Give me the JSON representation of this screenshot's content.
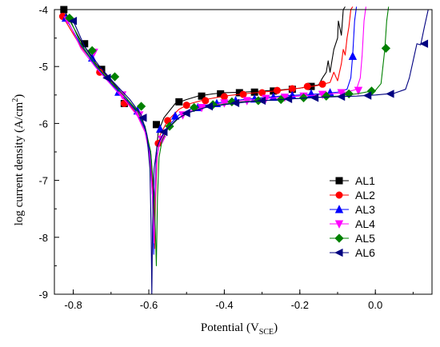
{
  "chart_data": {
    "type": "line",
    "title": "",
    "xlabel": "Potential (V",
    "xlabel_sub": "SCE",
    "xlabel_end": ")",
    "ylabel": "log current density (A/cm",
    "ylabel_sup": "2",
    "ylabel_end": ")",
    "xlim": [
      -0.85,
      0.15
    ],
    "ylim": [
      -9,
      -4
    ],
    "x_ticks": [
      -0.8,
      -0.6,
      -0.4,
      -0.2,
      0.0
    ],
    "x_tick_labels": [
      "-0.8",
      "-0.6",
      "-0.4",
      "-0.2",
      "0.0"
    ],
    "y_ticks": [
      -9,
      -8,
      -7,
      -6,
      -5,
      -4
    ],
    "y_tick_labels": [
      "-9",
      "-8",
      "-7",
      "-6",
      "-5",
      "-4"
    ],
    "grid": false,
    "legend_position": "bottom-right",
    "series": [
      {
        "name": "AL1",
        "color": "#000000",
        "marker": "square",
        "x": [
          -0.825,
          -0.78,
          -0.74,
          -0.7,
          -0.66,
          -0.63,
          -0.61,
          -0.595,
          -0.588,
          -0.585,
          -0.583,
          -0.58,
          -0.575,
          -0.56,
          -0.53,
          -0.5,
          -0.47,
          -0.43,
          -0.4,
          -0.35,
          -0.3,
          -0.25,
          -0.2,
          -0.15,
          -0.14,
          -0.13,
          -0.125,
          -0.12,
          -0.11,
          -0.1,
          -0.098,
          -0.09,
          -0.085,
          -0.08
        ],
        "y": [
          -4.0,
          -4.55,
          -4.95,
          -5.25,
          -5.55,
          -5.8,
          -6.1,
          -6.5,
          -7.2,
          -8.0,
          -7.2,
          -6.5,
          -6.15,
          -5.9,
          -5.65,
          -5.58,
          -5.52,
          -5.48,
          -5.46,
          -5.45,
          -5.43,
          -5.41,
          -5.38,
          -5.32,
          -5.2,
          -5.1,
          -4.9,
          -5.1,
          -4.7,
          -4.5,
          -4.2,
          -4.45,
          -4.0,
          -3.95
        ],
        "markers_x": [
          -0.825,
          -0.77,
          -0.725,
          -0.665,
          -0.58,
          -0.52,
          -0.46,
          -0.41,
          -0.36,
          -0.32,
          -0.27,
          -0.22,
          -0.17
        ],
        "markers_y": [
          -4.0,
          -4.6,
          -5.05,
          -5.65,
          -6.02,
          -5.62,
          -5.52,
          -5.48,
          -5.46,
          -5.45,
          -5.43,
          -5.4,
          -5.35
        ]
      },
      {
        "name": "AL2",
        "color": "#ff0000",
        "marker": "circle",
        "x": [
          -0.828,
          -0.78,
          -0.74,
          -0.7,
          -0.66,
          -0.63,
          -0.61,
          -0.595,
          -0.588,
          -0.585,
          -0.582,
          -0.578,
          -0.57,
          -0.55,
          -0.52,
          -0.49,
          -0.45,
          -0.4,
          -0.35,
          -0.3,
          -0.25,
          -0.2,
          -0.15,
          -0.12,
          -0.11,
          -0.1,
          -0.09,
          -0.085,
          -0.08,
          -0.075,
          -0.07,
          -0.065,
          -0.06
        ],
        "y": [
          -4.12,
          -4.65,
          -4.98,
          -5.28,
          -5.6,
          -5.85,
          -6.15,
          -6.6,
          -7.3,
          -8.2,
          -7.3,
          -6.6,
          -6.2,
          -5.95,
          -5.75,
          -5.65,
          -5.58,
          -5.52,
          -5.48,
          -5.45,
          -5.42,
          -5.38,
          -5.33,
          -5.28,
          -5.1,
          -5.25,
          -4.95,
          -4.7,
          -4.8,
          -4.5,
          -4.3,
          -4.0,
          -3.95
        ],
        "markers_x": [
          -0.828,
          -0.73,
          -0.665,
          -0.575,
          -0.55,
          -0.5,
          -0.45,
          -0.4,
          -0.35,
          -0.3,
          -0.26,
          -0.22,
          -0.18,
          -0.14
        ],
        "markers_y": [
          -4.12,
          -5.1,
          -5.65,
          -6.35,
          -5.95,
          -5.68,
          -5.6,
          -5.53,
          -5.49,
          -5.46,
          -5.42,
          -5.39,
          -5.35,
          -5.31
        ]
      },
      {
        "name": "AL3",
        "color": "#0000ff",
        "marker": "triangle-up",
        "x": [
          -0.82,
          -0.78,
          -0.74,
          -0.7,
          -0.66,
          -0.63,
          -0.61,
          -0.597,
          -0.59,
          -0.587,
          -0.584,
          -0.58,
          -0.57,
          -0.55,
          -0.52,
          -0.49,
          -0.45,
          -0.4,
          -0.35,
          -0.3,
          -0.25,
          -0.2,
          -0.15,
          -0.1,
          -0.075,
          -0.065,
          -0.06,
          -0.055,
          -0.05
        ],
        "y": [
          -4.15,
          -4.62,
          -5.0,
          -5.3,
          -5.58,
          -5.82,
          -6.1,
          -6.5,
          -7.3,
          -8.3,
          -7.3,
          -6.6,
          -6.3,
          -6.05,
          -5.85,
          -5.75,
          -5.68,
          -5.62,
          -5.58,
          -5.55,
          -5.52,
          -5.5,
          -5.48,
          -5.45,
          -5.4,
          -5.2,
          -4.8,
          -4.2,
          -3.95
        ],
        "markers_x": [
          -0.82,
          -0.75,
          -0.68,
          -0.63,
          -0.57,
          -0.53,
          -0.47,
          -0.42,
          -0.37,
          -0.32,
          -0.27,
          -0.22,
          -0.17,
          -0.12,
          -0.06
        ],
        "markers_y": [
          -4.15,
          -4.85,
          -5.45,
          -5.78,
          -6.1,
          -5.87,
          -5.72,
          -5.65,
          -5.6,
          -5.57,
          -5.54,
          -5.51,
          -5.48,
          -5.46,
          -4.82
        ]
      },
      {
        "name": "AL4",
        "color": "#ff00ff",
        "marker": "triangle-down",
        "x": [
          -0.815,
          -0.78,
          -0.74,
          -0.7,
          -0.66,
          -0.63,
          -0.61,
          -0.598,
          -0.59,
          -0.586,
          -0.583,
          -0.579,
          -0.57,
          -0.55,
          -0.52,
          -0.49,
          -0.45,
          -0.4,
          -0.35,
          -0.3,
          -0.25,
          -0.2,
          -0.15,
          -0.1,
          -0.07,
          -0.05,
          -0.04,
          -0.035,
          -0.03,
          -0.025
        ],
        "y": [
          -4.18,
          -4.68,
          -5.02,
          -5.32,
          -5.62,
          -5.87,
          -6.15,
          -6.55,
          -7.3,
          -8.1,
          -7.3,
          -6.6,
          -6.3,
          -6.1,
          -5.9,
          -5.78,
          -5.7,
          -5.64,
          -5.6,
          -5.57,
          -5.54,
          -5.52,
          -5.5,
          -5.47,
          -5.44,
          -5.4,
          -5.2,
          -4.8,
          -4.2,
          -3.95
        ],
        "markers_x": [
          -0.815,
          -0.745,
          -0.67,
          -0.625,
          -0.565,
          -0.51,
          -0.46,
          -0.4,
          -0.34,
          -0.29,
          -0.24,
          -0.19,
          -0.14,
          -0.09,
          -0.045
        ],
        "markers_y": [
          -4.18,
          -4.75,
          -5.5,
          -5.85,
          -6.28,
          -5.85,
          -5.72,
          -5.64,
          -5.6,
          -5.56,
          -5.54,
          -5.52,
          -5.49,
          -5.46,
          -5.42
        ]
      },
      {
        "name": "AL5",
        "color": "#008000",
        "marker": "diamond",
        "x": [
          -0.81,
          -0.78,
          -0.74,
          -0.7,
          -0.66,
          -0.63,
          -0.61,
          -0.595,
          -0.585,
          -0.58,
          -0.577,
          -0.573,
          -0.565,
          -0.55,
          -0.52,
          -0.49,
          -0.45,
          -0.4,
          -0.35,
          -0.3,
          -0.25,
          -0.2,
          -0.15,
          -0.1,
          -0.05,
          0.0,
          0.015,
          0.02,
          0.025,
          0.03,
          0.035
        ],
        "y": [
          -4.15,
          -4.6,
          -4.98,
          -5.28,
          -5.55,
          -5.78,
          -6.05,
          -6.5,
          -7.3,
          -8.5,
          -7.3,
          -6.6,
          -6.3,
          -6.1,
          -5.9,
          -5.8,
          -5.72,
          -5.66,
          -5.62,
          -5.6,
          -5.58,
          -5.56,
          -5.54,
          -5.52,
          -5.48,
          -5.42,
          -5.3,
          -5.0,
          -4.7,
          -4.2,
          -3.95
        ],
        "markers_x": [
          -0.81,
          -0.75,
          -0.69,
          -0.62,
          -0.545,
          -0.48,
          -0.43,
          -0.38,
          -0.31,
          -0.25,
          -0.19,
          -0.13,
          -0.07,
          -0.01,
          0.028
        ],
        "markers_y": [
          -4.15,
          -4.72,
          -5.18,
          -5.7,
          -6.05,
          -5.72,
          -5.67,
          -5.62,
          -5.6,
          -5.58,
          -5.55,
          -5.52,
          -5.48,
          -5.43,
          -4.68
        ]
      },
      {
        "name": "AL6",
        "color": "#000080",
        "marker": "triangle-left",
        "x": [
          -0.8,
          -0.77,
          -0.73,
          -0.69,
          -0.65,
          -0.62,
          -0.605,
          -0.597,
          -0.594,
          -0.592,
          -0.59,
          -0.586,
          -0.578,
          -0.56,
          -0.53,
          -0.5,
          -0.45,
          -0.4,
          -0.35,
          -0.3,
          -0.25,
          -0.2,
          -0.15,
          -0.1,
          -0.05,
          0.0,
          0.05,
          0.08,
          0.09,
          0.1,
          0.11,
          0.12,
          0.13,
          0.14
        ],
        "y": [
          -4.2,
          -4.65,
          -5.0,
          -5.3,
          -5.58,
          -5.85,
          -6.2,
          -6.8,
          -7.8,
          -9.0,
          -7.8,
          -6.8,
          -6.4,
          -6.15,
          -5.95,
          -5.82,
          -5.72,
          -5.67,
          -5.63,
          -5.6,
          -5.58,
          -5.56,
          -5.54,
          -5.53,
          -5.52,
          -5.5,
          -5.47,
          -5.4,
          -5.2,
          -4.9,
          -4.6,
          -4.62,
          -4.3,
          -4.0
        ],
        "markers_x": [
          -0.8,
          -0.71,
          -0.615,
          -0.56,
          -0.5,
          -0.44,
          -0.37,
          -0.3,
          -0.23,
          -0.16,
          -0.09,
          -0.02,
          0.04,
          0.13
        ],
        "markers_y": [
          -4.2,
          -5.2,
          -5.9,
          -6.15,
          -5.82,
          -5.7,
          -5.64,
          -5.6,
          -5.57,
          -5.55,
          -5.53,
          -5.51,
          -5.48,
          -4.6
        ]
      }
    ]
  }
}
